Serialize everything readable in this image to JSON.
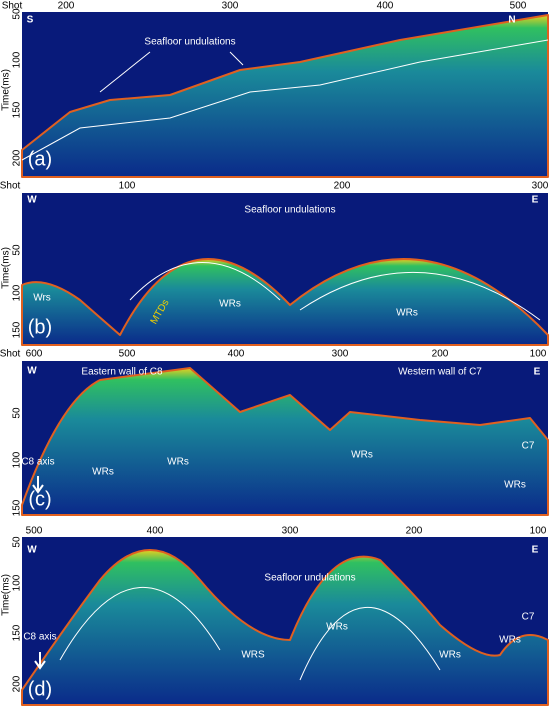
{
  "panels": [
    {
      "label": "(a)",
      "x_axis_title": "Shot",
      "y_axis_title": "Time(ms)",
      "x_ticks": [
        "200",
        "300",
        "400",
        "500"
      ],
      "y_ticks": [
        "50",
        "100",
        "150",
        "200"
      ],
      "directions": [
        "S",
        "N"
      ],
      "annotations": [
        "Seafloor undulations"
      ]
    },
    {
      "label": "(b)",
      "x_axis_title": "Shot",
      "y_axis_title": "Time(ms)",
      "x_ticks": [
        "100",
        "200",
        "300"
      ],
      "y_ticks": [
        "50",
        "100",
        "150"
      ],
      "directions": [
        "W",
        "E"
      ],
      "annotations": [
        "Seafloor undulations",
        "Wrs",
        "WRs",
        "WRs",
        "MTDs"
      ]
    },
    {
      "label": "(c)",
      "x_axis_title": "Shot",
      "x_ticks": [
        "600",
        "500",
        "400",
        "300",
        "200",
        "100"
      ],
      "y_ticks": [
        "50",
        "100",
        "150"
      ],
      "directions": [
        "W",
        "E"
      ],
      "annotations": [
        "Eastern wall of C8",
        "Western wall of C7",
        "C8 axis",
        "C7",
        "WRs",
        "WRs",
        "WRs",
        "WRs"
      ]
    },
    {
      "label": "(d)",
      "y_axis_title": "Time(ms)",
      "x_ticks": [
        "500",
        "400",
        "300",
        "200",
        "100"
      ],
      "y_ticks": [
        "50",
        "100",
        "150",
        "200"
      ],
      "directions": [
        "W",
        "E"
      ],
      "annotations": [
        "Seafloor undulations",
        "C8 axis",
        "C7",
        "WRS",
        "WRs",
        "WRs",
        "WRs"
      ]
    }
  ]
}
